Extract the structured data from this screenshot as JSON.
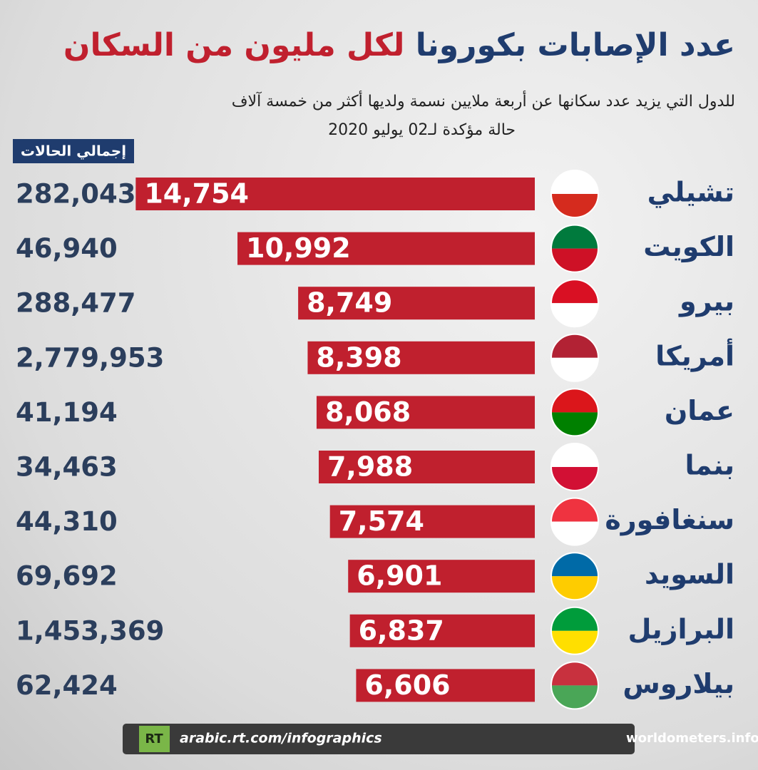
{
  "chart_data": {
    "type": "bar",
    "orientation": "horizontal",
    "title": {
      "part1": "عدد الإصابات بكورونا",
      "part2": "لكل مليون من السكان"
    },
    "subtitle": [
      "للدول التي يزيد عدد سكانها عن أربعة ملايين نسمة ولديها أكثر من خمسة آلاف",
      "حالة مؤكدة لـ02 يوليو 2020"
    ],
    "totals_header": "إجمالي الحالات",
    "categories": [
      "تشيلي",
      "الكويت",
      "بيرو",
      "أمريكا",
      "عمان",
      "بنما",
      "سنغافورة",
      "السويد",
      "البرازيل",
      "بيلاروس"
    ],
    "values": [
      14754,
      10992,
      8749,
      8398,
      8068,
      7988,
      7574,
      6901,
      6837,
      6606
    ],
    "value_labels": [
      "14,754",
      "10,992",
      "8,749",
      "8,398",
      "8,068",
      "7,988",
      "7,574",
      "6,901",
      "6,837",
      "6,606"
    ],
    "totals": [
      282043,
      46940,
      288477,
      2779953,
      41194,
      34463,
      44310,
      69692,
      1453369,
      62424
    ],
    "total_labels": [
      "282,043",
      "46,940",
      "288,477",
      "2,779,953",
      "41,194",
      "34,463",
      "44,310",
      "69,692",
      "1,453,369",
      "62,424"
    ],
    "color": "#c0202e",
    "xlim": [
      0,
      15000
    ],
    "footer": {
      "logo": "RT",
      "url": "arabic.rt.com/infographics",
      "source": "المصدر: worldometers.info"
    }
  }
}
